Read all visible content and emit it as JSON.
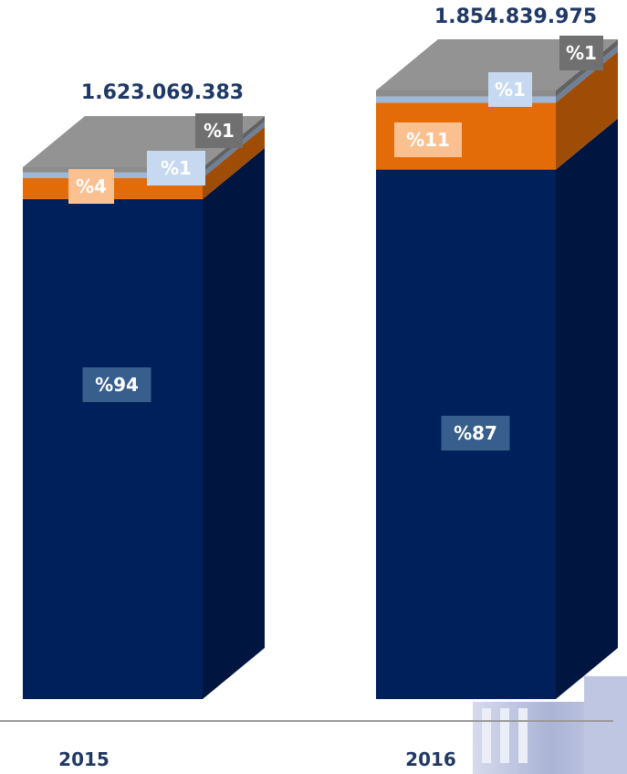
{
  "chart_data": {
    "type": "bar",
    "stacked": true,
    "style": "3d",
    "categories": [
      "2015",
      "2016"
    ],
    "totals": [
      "1.623.069.383",
      "1.854.839.975"
    ],
    "series": [
      {
        "values": [
          94,
          87
        ],
        "labels": [
          "%94",
          "%87"
        ],
        "color": "#00205B",
        "label_bg": "#375E8C"
      },
      {
        "values": [
          4,
          11
        ],
        "labels": [
          "%4",
          "%11"
        ],
        "color": "#E36C09",
        "label_bg": "#FAC090"
      },
      {
        "values": [
          1,
          1
        ],
        "labels": [
          "%1",
          "%1"
        ],
        "color": "#9DB8DA",
        "label_bg": "#C6D9F1"
      },
      {
        "values": [
          1,
          1
        ],
        "labels": [
          "%1",
          "%1"
        ],
        "color": "#8C8C8C",
        "label_bg": "#707070"
      }
    ],
    "legend": "none",
    "grid": false
  }
}
